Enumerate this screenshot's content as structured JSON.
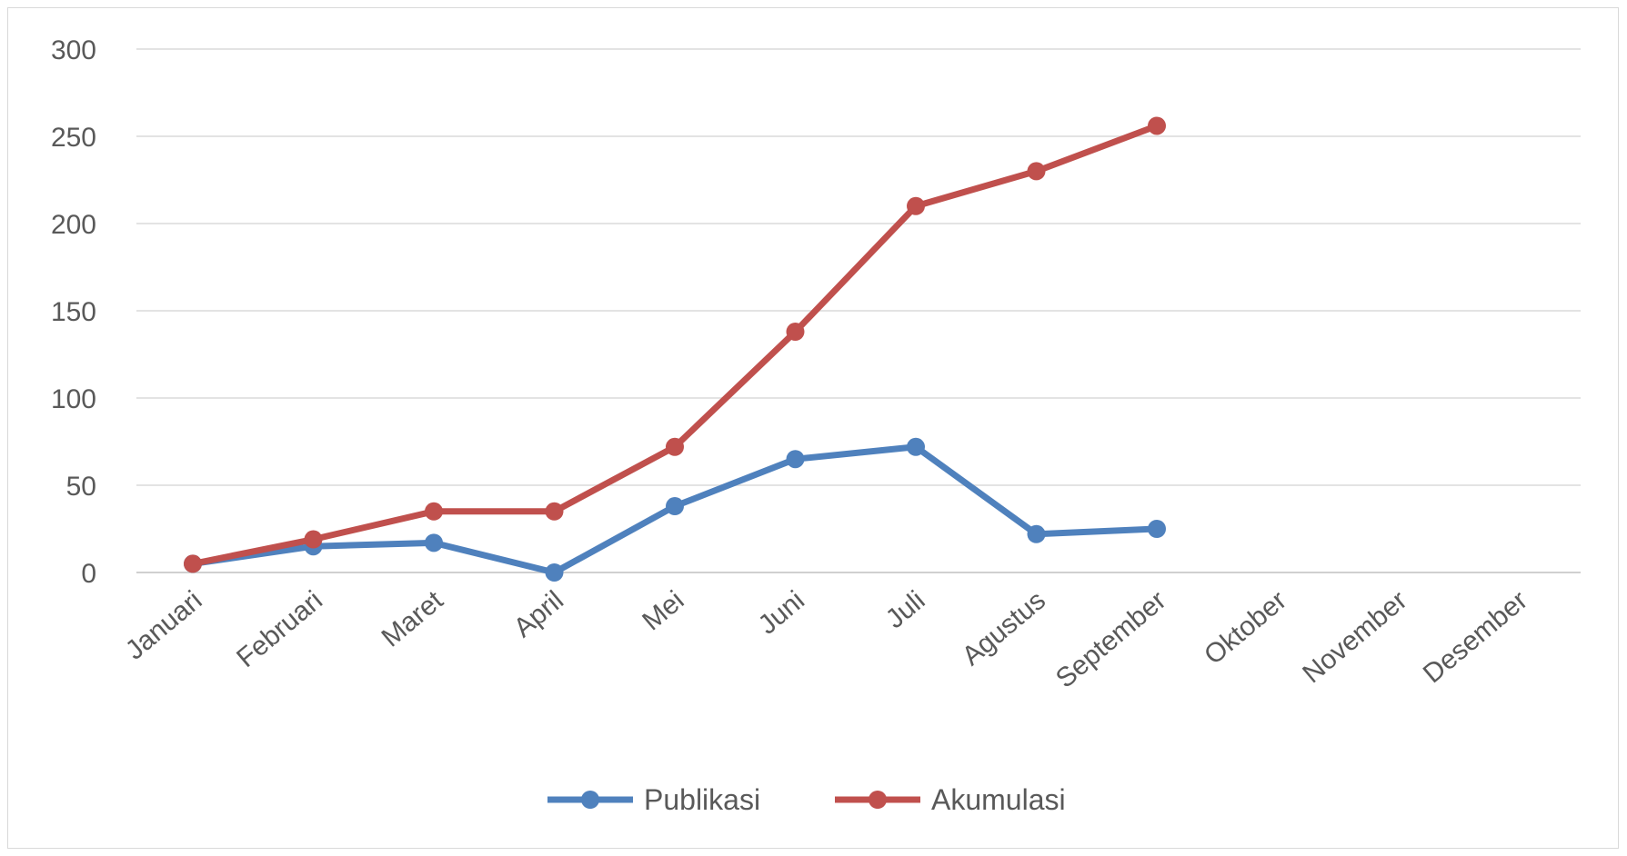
{
  "chart_data": {
    "type": "line",
    "categories": [
      "Januari",
      "Februari",
      "Maret",
      "April",
      "Mei",
      "Juni",
      "Juli",
      "Agustus",
      "September",
      "Oktober",
      "November",
      "Desember"
    ],
    "series": [
      {
        "name": "Publikasi",
        "color": "#4F81BD",
        "values": [
          5,
          15,
          17,
          0,
          38,
          65,
          72,
          22,
          25,
          null,
          null,
          null
        ]
      },
      {
        "name": "Akumulasi",
        "color": "#C0504D",
        "values": [
          5,
          19,
          35,
          35,
          72,
          138,
          210,
          230,
          256,
          null,
          null,
          null
        ]
      }
    ],
    "yticks": [
      "0",
      "50",
      "100",
      "150",
      "200",
      "250",
      "300"
    ],
    "ylim": [
      0,
      300
    ],
    "grid": true,
    "legend_position": "bottom"
  }
}
